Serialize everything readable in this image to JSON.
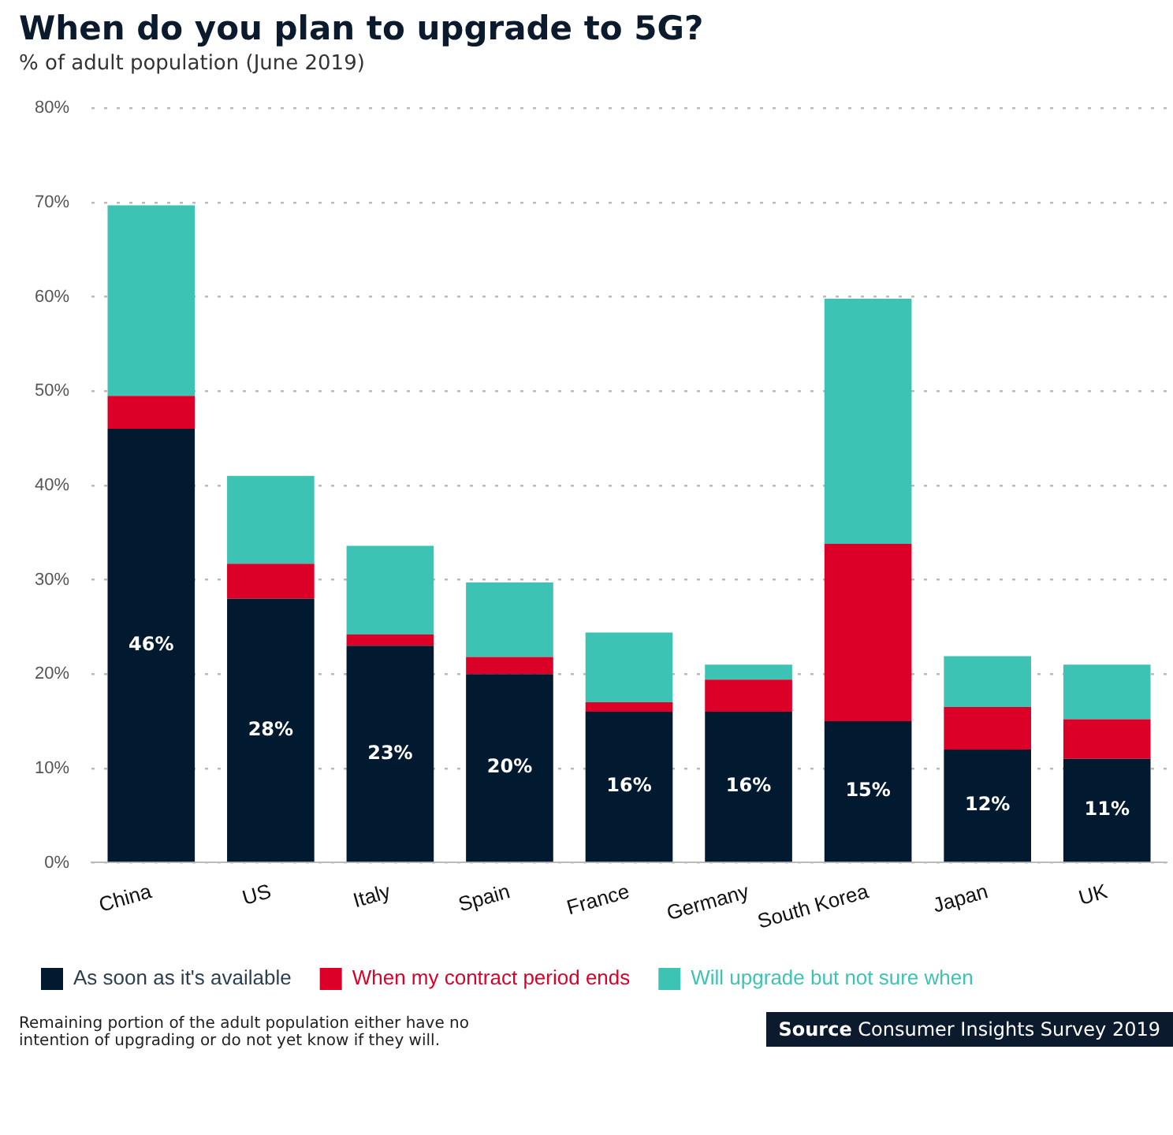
{
  "chart_data": {
    "type": "bar",
    "title": "When do you plan to upgrade to 5G?",
    "subtitle": "% of adult population (June 2019)",
    "categories": [
      "China",
      "US",
      "Italy",
      "Spain",
      "France",
      "Germany",
      "South Korea",
      "Japan",
      "UK"
    ],
    "stacked": true,
    "series": [
      {
        "name": "As soon as it's available",
        "color": "#021a30",
        "values": [
          46,
          28,
          23,
          20,
          16,
          16,
          15,
          12,
          11
        ],
        "value_labels": [
          "46%",
          "28%",
          "23%",
          "20%",
          "16%",
          "16%",
          "15%",
          "12%",
          "11%"
        ]
      },
      {
        "name": "When my contract period ends",
        "color": "#dc0029",
        "values": [
          3.5,
          3.7,
          1.2,
          1.8,
          1.0,
          3.4,
          18.8,
          4.5,
          4.2
        ]
      },
      {
        "name": "Will upgrade but not sure when",
        "color": "#3dc3b4",
        "values": [
          20.2,
          9.3,
          9.4,
          7.9,
          7.4,
          1.6,
          26,
          5.4,
          5.8
        ]
      }
    ],
    "ylim": [
      0,
      80
    ],
    "yticks": [
      {
        "value": 0,
        "label": "0%"
      },
      {
        "value": 10,
        "label": "10%"
      },
      {
        "value": 20,
        "label": "20%"
      },
      {
        "value": 30,
        "label": "30%"
      },
      {
        "value": 40,
        "label": "40%"
      },
      {
        "value": 50,
        "label": "50%"
      },
      {
        "value": 60,
        "label": "60%"
      },
      {
        "value": 70,
        "label": "70%"
      },
      {
        "value": 80,
        "label": "80%"
      }
    ],
    "grid": "y",
    "legend": "bottom",
    "annotations": [
      "Remaining portion of the adult population either have no intention of upgrading or do not yet know if they will.",
      "Source Consumer Insights Survey 2019"
    ]
  }
}
